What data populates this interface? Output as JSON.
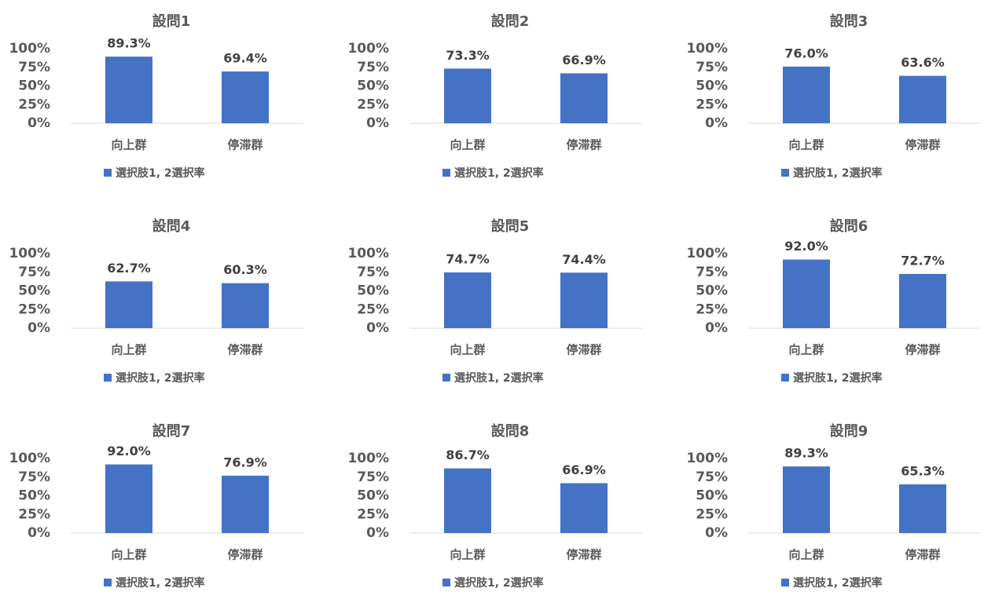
{
  "chart_data": [
    {
      "type": "bar",
      "title": "設問1",
      "categories": [
        "向上群",
        "停滞群"
      ],
      "series": [
        {
          "name": "選択肢1, 2選択率",
          "color": "#4472c4",
          "values": [
            89.3,
            69.4
          ],
          "value_labels": [
            "89.3%",
            "69.4%"
          ]
        }
      ],
      "ylim": [
        0,
        100
      ],
      "yticks": [
        {
          "value": 0,
          "label": "0%"
        },
        {
          "value": 25,
          "label": "25%"
        },
        {
          "value": 50,
          "label": "50%"
        },
        {
          "value": 75,
          "label": "75%"
        },
        {
          "value": 100,
          "label": "100%"
        }
      ]
    },
    {
      "type": "bar",
      "title": "設問2",
      "categories": [
        "向上群",
        "停滞群"
      ],
      "series": [
        {
          "name": "選択肢1, 2選択率",
          "color": "#4472c4",
          "values": [
            73.3,
            66.9
          ],
          "value_labels": [
            "73.3%",
            "66.9%"
          ]
        }
      ],
      "ylim": [
        0,
        100
      ],
      "yticks": [
        {
          "value": 0,
          "label": "0%"
        },
        {
          "value": 25,
          "label": "25%"
        },
        {
          "value": 50,
          "label": "50%"
        },
        {
          "value": 75,
          "label": "75%"
        },
        {
          "value": 100,
          "label": "100%"
        }
      ]
    },
    {
      "type": "bar",
      "title": "設問3",
      "categories": [
        "向上群",
        "停滞群"
      ],
      "series": [
        {
          "name": "選択肢1, 2選択率",
          "color": "#4472c4",
          "values": [
            76.0,
            63.6
          ],
          "value_labels": [
            "76.0%",
            "63.6%"
          ]
        }
      ],
      "ylim": [
        0,
        100
      ],
      "yticks": [
        {
          "value": 0,
          "label": "0%"
        },
        {
          "value": 25,
          "label": "25%"
        },
        {
          "value": 50,
          "label": "50%"
        },
        {
          "value": 75,
          "label": "75%"
        },
        {
          "value": 100,
          "label": "100%"
        }
      ]
    },
    {
      "type": "bar",
      "title": "設問4",
      "categories": [
        "向上群",
        "停滞群"
      ],
      "series": [
        {
          "name": "選択肢1, 2選択率",
          "color": "#4472c4",
          "values": [
            62.7,
            60.3
          ],
          "value_labels": [
            "62.7%",
            "60.3%"
          ]
        }
      ],
      "ylim": [
        0,
        100
      ],
      "yticks": [
        {
          "value": 0,
          "label": "0%"
        },
        {
          "value": 25,
          "label": "25%"
        },
        {
          "value": 50,
          "label": "50%"
        },
        {
          "value": 75,
          "label": "75%"
        },
        {
          "value": 100,
          "label": "100%"
        }
      ]
    },
    {
      "type": "bar",
      "title": "設問5",
      "categories": [
        "向上群",
        "停滞群"
      ],
      "series": [
        {
          "name": "選択肢1, 2選択率",
          "color": "#4472c4",
          "values": [
            74.7,
            74.4
          ],
          "value_labels": [
            "74.7%",
            "74.4%"
          ]
        }
      ],
      "ylim": [
        0,
        100
      ],
      "yticks": [
        {
          "value": 0,
          "label": "0%"
        },
        {
          "value": 25,
          "label": "25%"
        },
        {
          "value": 50,
          "label": "50%"
        },
        {
          "value": 75,
          "label": "75%"
        },
        {
          "value": 100,
          "label": "100%"
        }
      ]
    },
    {
      "type": "bar",
      "title": "設問6",
      "categories": [
        "向上群",
        "停滞群"
      ],
      "series": [
        {
          "name": "選択肢1, 2選択率",
          "color": "#4472c4",
          "values": [
            92.0,
            72.7
          ],
          "value_labels": [
            "92.0%",
            "72.7%"
          ]
        }
      ],
      "ylim": [
        0,
        100
      ],
      "yticks": [
        {
          "value": 0,
          "label": "0%"
        },
        {
          "value": 25,
          "label": "25%"
        },
        {
          "value": 50,
          "label": "50%"
        },
        {
          "value": 75,
          "label": "75%"
        },
        {
          "value": 100,
          "label": "100%"
        }
      ]
    },
    {
      "type": "bar",
      "title": "設問7",
      "categories": [
        "向上群",
        "停滞群"
      ],
      "series": [
        {
          "name": "選択肢1, 2選択率",
          "color": "#4472c4",
          "values": [
            92.0,
            76.9
          ],
          "value_labels": [
            "92.0%",
            "76.9%"
          ]
        }
      ],
      "ylim": [
        0,
        100
      ],
      "yticks": [
        {
          "value": 0,
          "label": "0%"
        },
        {
          "value": 25,
          "label": "25%"
        },
        {
          "value": 50,
          "label": "50%"
        },
        {
          "value": 75,
          "label": "75%"
        },
        {
          "value": 100,
          "label": "100%"
        }
      ]
    },
    {
      "type": "bar",
      "title": "設問8",
      "categories": [
        "向上群",
        "停滞群"
      ],
      "series": [
        {
          "name": "選択肢1, 2選択率",
          "color": "#4472c4",
          "values": [
            86.7,
            66.9
          ],
          "value_labels": [
            "86.7%",
            "66.9%"
          ]
        }
      ],
      "ylim": [
        0,
        100
      ],
      "yticks": [
        {
          "value": 0,
          "label": "0%"
        },
        {
          "value": 25,
          "label": "25%"
        },
        {
          "value": 50,
          "label": "50%"
        },
        {
          "value": 75,
          "label": "75%"
        },
        {
          "value": 100,
          "label": "100%"
        }
      ]
    },
    {
      "type": "bar",
      "title": "設問9",
      "categories": [
        "向上群",
        "停滞群"
      ],
      "series": [
        {
          "name": "選択肢1, 2選択率",
          "color": "#4472c4",
          "values": [
            89.3,
            65.3
          ],
          "value_labels": [
            "89.3%",
            "65.3%"
          ]
        }
      ],
      "ylim": [
        0,
        100
      ],
      "yticks": [
        {
          "value": 0,
          "label": "0%"
        },
        {
          "value": 25,
          "label": "25%"
        },
        {
          "value": 50,
          "label": "50%"
        },
        {
          "value": 75,
          "label": "75%"
        },
        {
          "value": 100,
          "label": "100%"
        }
      ]
    }
  ]
}
